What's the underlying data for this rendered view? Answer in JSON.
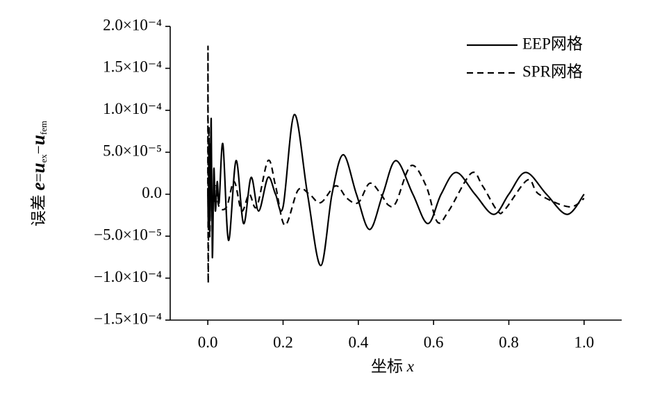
{
  "chart_data": {
    "type": "line",
    "xlabel": [
      "坐标 ",
      "x"
    ],
    "ylabel": [
      "误差 ",
      "e",
      "=",
      "u",
      "ex",
      "−",
      "u",
      "fem"
    ],
    "xlim": [
      -0.1,
      1.1
    ],
    "ylim": [
      -0.00015,
      0.0002
    ],
    "xticks": [
      {
        "value": 0,
        "label": "0.0"
      },
      0.2,
      0.4,
      0.6,
      0.8,
      {
        "value": 1,
        "label": "1.0"
      }
    ],
    "yticks": [
      {
        "value": -0.00015,
        "label": "−1.5×10⁻⁴"
      },
      {
        "value": -0.0001,
        "label": "−1.0×10⁻⁴"
      },
      {
        "value": -5e-05,
        "label": "−5.0×10⁻⁵"
      },
      {
        "value": 0,
        "label": "0.0"
      },
      {
        "value": 5e-05,
        "label": "5.0×10⁻⁵"
      },
      {
        "value": 0.0001,
        "label": "1.0×10⁻⁴"
      },
      {
        "value": 0.00015,
        "label": "1.5×10⁻⁴"
      },
      {
        "value": 0.0002,
        "label": "2.0×10⁻⁴"
      }
    ],
    "legend": "upper right",
    "series": [
      {
        "name": "EEP网格",
        "color": "#000000",
        "dash": "solid",
        "x": [
          0,
          0.002,
          0.004,
          0.006,
          0.009,
          0.012,
          0.016,
          0.02,
          0.025,
          0.03,
          0.04,
          0.055,
          0.075,
          0.095,
          0.115,
          0.135,
          0.16,
          0.18,
          0.2,
          0.23,
          0.265,
          0.3,
          0.33,
          0.36,
          0.395,
          0.43,
          0.465,
          0.5,
          0.545,
          0.585,
          0.62,
          0.66,
          0.71,
          0.76,
          0.8,
          0.845,
          0.9,
          0.955,
          1.0
        ],
        "values": [
          0,
          -4e-05,
          6e-05,
          -3e-05,
          9e-05,
          -7.5e-05,
          3e-05,
          -2e-05,
          1.5e-05,
          -1e-05,
          6e-05,
          -5.5e-05,
          4e-05,
          -3.5e-05,
          2e-05,
          -2e-05,
          2e-05,
          0,
          -1.5e-05,
          9.5e-05,
          0,
          -8.5e-05,
          0,
          4.7e-05,
          0,
          -4.2e-05,
          0,
          4e-05,
          0,
          -3.5e-05,
          0,
          2.6e-05,
          0,
          -2.4e-05,
          0,
          2.6e-05,
          0,
          -2.4e-05,
          0
        ]
      },
      {
        "name": "SPR网格",
        "color": "#000000",
        "dash": "dashed",
        "x": [
          0,
          0.0005,
          0.001,
          0.003,
          0.005,
          0.008,
          0.012,
          0.02,
          0.03,
          0.05,
          0.07,
          0.09,
          0.11,
          0.13,
          0.16,
          0.18,
          0.205,
          0.24,
          0.27,
          0.3,
          0.34,
          0.37,
          0.4,
          0.43,
          0.46,
          0.48,
          0.5,
          0.54,
          0.58,
          0.61,
          0.64,
          0.7,
          0.73,
          0.77,
          0.79,
          0.85,
          0.88,
          0.96,
          1.0
        ],
        "values": [
          0,
          0.000175,
          -0.000105,
          8e-05,
          -5e-05,
          3e-05,
          -2e-05,
          1e-05,
          -1.5e-05,
          -1.5e-05,
          1.5e-05,
          -2e-05,
          0,
          -1.5e-05,
          4e-05,
          1e-05,
          -3.7e-05,
          5e-06,
          0,
          -1e-05,
          1e-05,
          -5e-06,
          -1e-05,
          1.3e-05,
          0,
          -1.3e-05,
          -1e-05,
          3.4e-05,
          1e-05,
          -3.3e-05,
          -2e-05,
          2.5e-05,
          1e-05,
          -2e-05,
          -1.8e-05,
          1.7e-05,
          0,
          -1.5e-05,
          -5e-06
        ]
      }
    ]
  }
}
